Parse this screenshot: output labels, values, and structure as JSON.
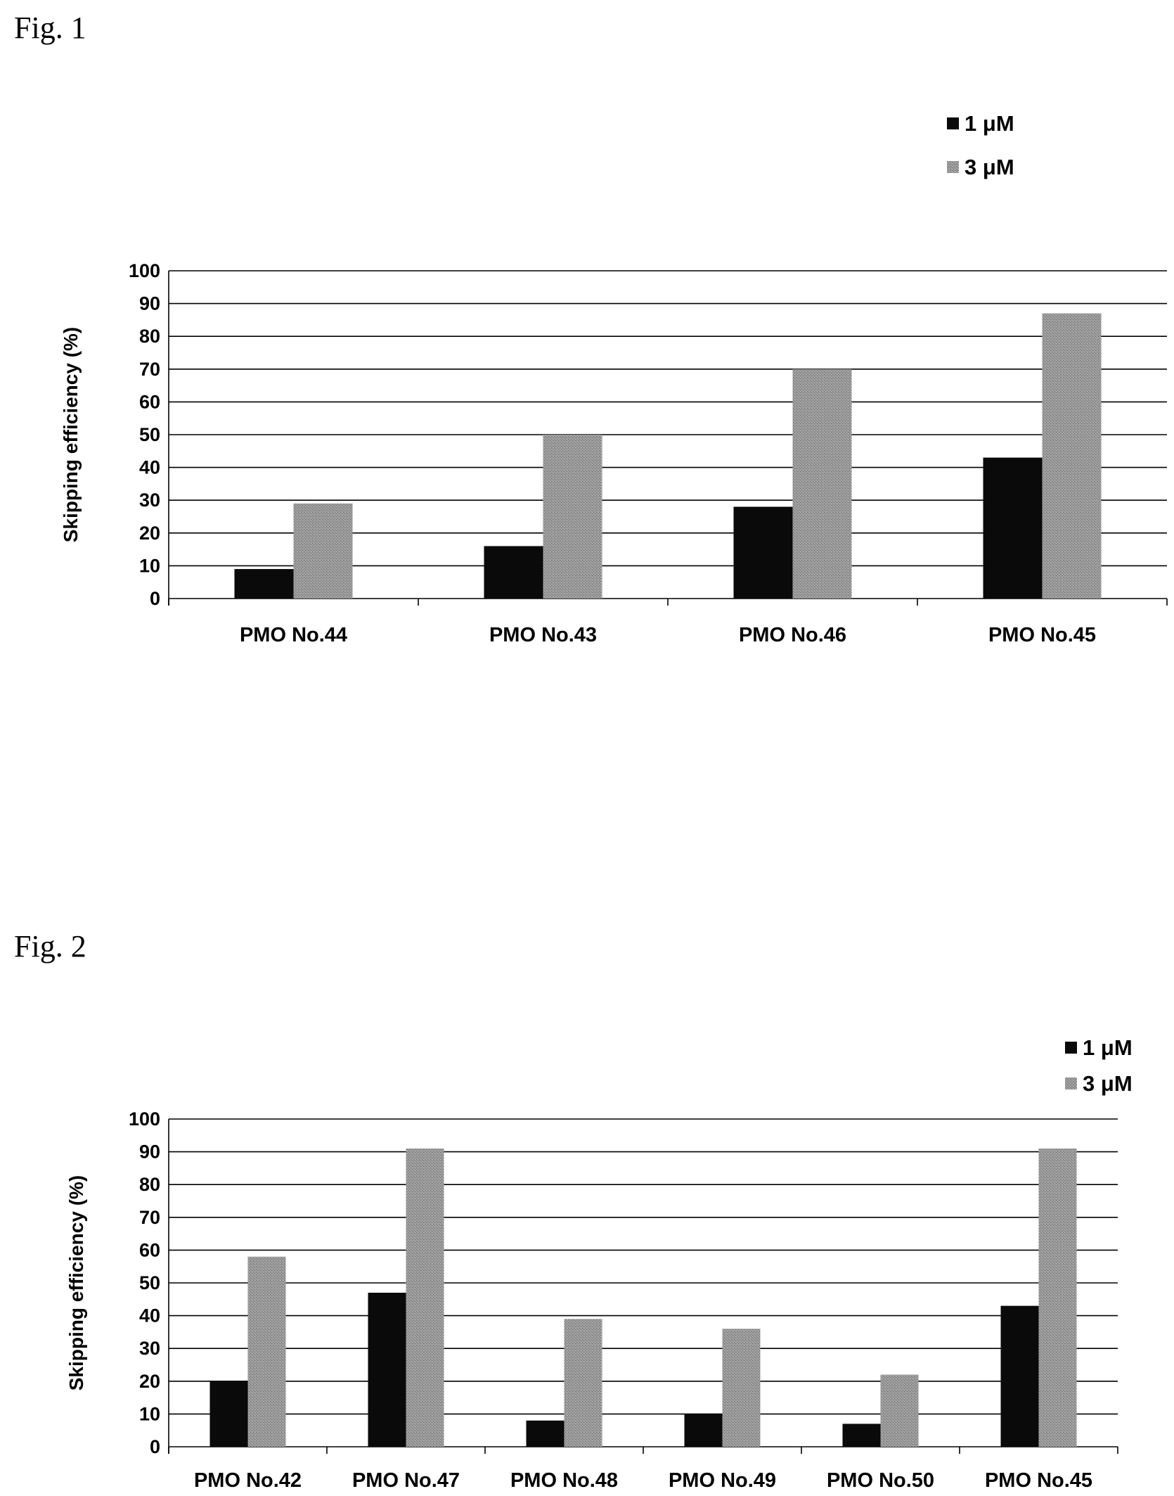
{
  "figures": [
    {
      "label": "Fig. 1"
    },
    {
      "label": "Fig. 2"
    }
  ],
  "colors": {
    "series_1uM": "#0a0a0a",
    "series_3uM": "#8a8a8a"
  },
  "chart_data": [
    {
      "type": "bar",
      "title": "",
      "xlabel": "",
      "ylabel": "Skipping efficiency (%)",
      "ylim": [
        0,
        100
      ],
      "yticks": [
        0,
        10,
        20,
        30,
        40,
        50,
        60,
        70,
        80,
        90,
        100
      ],
      "grid": true,
      "legend_position": "top-right",
      "categories": [
        "PMO No.44",
        "PMO No.43",
        "PMO No.46",
        "PMO No.45"
      ],
      "series": [
        {
          "name": "1 μM",
          "values": [
            9,
            16,
            28,
            43
          ]
        },
        {
          "name": "3 μM",
          "values": [
            29,
            50,
            70,
            87
          ]
        }
      ]
    },
    {
      "type": "bar",
      "title": "",
      "xlabel": "",
      "ylabel": "Skipping efficiency (%)",
      "ylim": [
        0,
        100
      ],
      "yticks": [
        0,
        10,
        20,
        30,
        40,
        50,
        60,
        70,
        80,
        90,
        100
      ],
      "grid": true,
      "legend_position": "top-right",
      "categories": [
        "PMO No.42",
        "PMO No.47",
        "PMO No.48",
        "PMO No.49",
        "PMO No.50",
        "PMO No.45"
      ],
      "series": [
        {
          "name": "1 μM",
          "values": [
            20,
            47,
            8,
            10,
            7,
            43
          ]
        },
        {
          "name": "3 μM",
          "values": [
            58,
            91,
            39,
            36,
            22,
            91
          ]
        }
      ]
    }
  ]
}
